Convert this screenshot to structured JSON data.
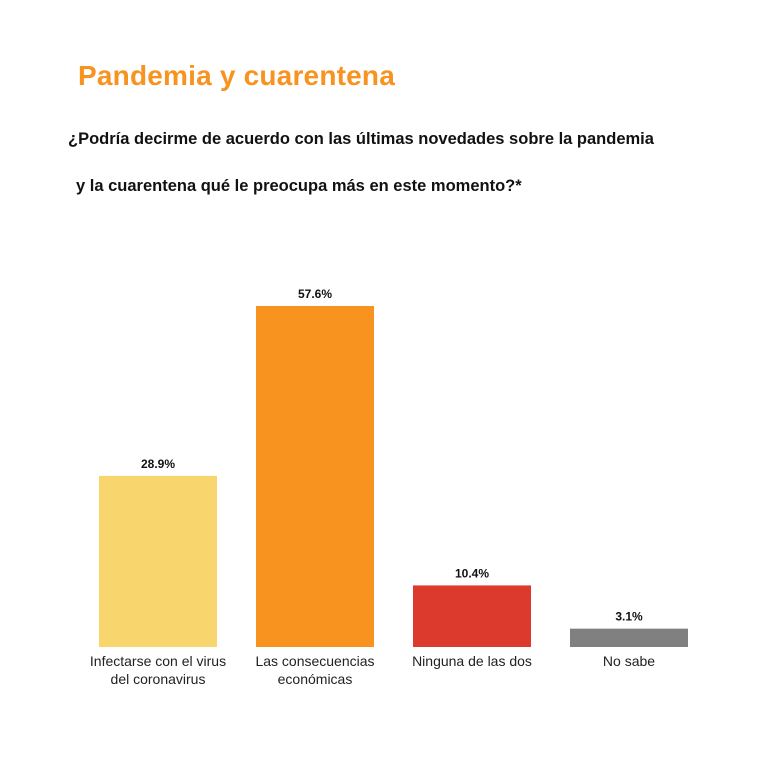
{
  "header": {
    "title": "Pandemia y cuarentena",
    "question_line1": "¿Podría decirme de acuerdo con las últimas novedades sobre la pandemia",
    "question_line2": "y la cuarentena qué le preocupa más en este momento?*"
  },
  "chart_data": {
    "type": "bar",
    "categories": [
      [
        "Infectarse con el virus",
        "del coronavirus"
      ],
      [
        "Las consecuencias",
        "económicas"
      ],
      [
        "Ninguna de las dos"
      ],
      [
        "No sabe"
      ]
    ],
    "values": [
      28.9,
      57.6,
      10.4,
      3.1
    ],
    "value_labels": [
      "28.9%",
      "57.6%",
      "10.4%",
      "3.1%"
    ],
    "colors": [
      "#F8D66D",
      "#F7931E",
      "#DD3A2E",
      "#808080"
    ],
    "title": "",
    "xlabel": "",
    "ylabel": "",
    "ylim": [
      0,
      60
    ],
    "grid": false,
    "legend": "none"
  }
}
